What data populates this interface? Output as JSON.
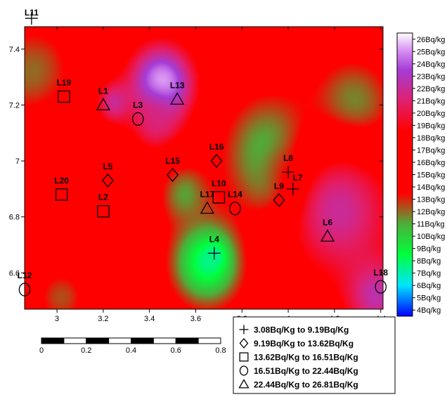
{
  "map": {
    "x_axis": {
      "min": 2.86,
      "max": 4.41,
      "ticks": [
        "3",
        "3.2",
        "3.4",
        "3.6",
        "3.8",
        "4",
        "4.2",
        "4.4"
      ]
    },
    "y_axis": {
      "min": 6.47,
      "max": 7.48,
      "ticks": [
        "6.6",
        "6.8",
        "7",
        "7.2",
        "7.4"
      ]
    },
    "hotspots": [
      {
        "x": 3.45,
        "y": 7.27,
        "value": 26.3,
        "radius": 0.11
      },
      {
        "x": 3.24,
        "y": 7.2,
        "value": 24.5,
        "radius": 0.06
      },
      {
        "x": 3.42,
        "y": 7.14,
        "value": 22.0,
        "radius": 0.08
      },
      {
        "x": 4.01,
        "y": 6.97,
        "value": 3.5,
        "radius": 0.03
      },
      {
        "x": 3.97,
        "y": 6.93,
        "value": 7.0,
        "radius": 0.09
      },
      {
        "x": 3.93,
        "y": 7.03,
        "value": 10.0,
        "radius": 0.15
      },
      {
        "x": 3.68,
        "y": 6.66,
        "value": 3.5,
        "radius": 0.03
      },
      {
        "x": 3.65,
        "y": 6.64,
        "value": 7.5,
        "radius": 0.11
      },
      {
        "x": 3.55,
        "y": 6.88,
        "value": 11.0,
        "radius": 0.08
      },
      {
        "x": 2.9,
        "y": 7.3,
        "value": 11.5,
        "radius": 0.13
      },
      {
        "x": 4.28,
        "y": 7.18,
        "value": 10.5,
        "radius": 0.13
      },
      {
        "x": 4.22,
        "y": 6.82,
        "value": 22.0,
        "radius": 0.18
      },
      {
        "x": 4.38,
        "y": 6.52,
        "value": 22.5,
        "radius": 0.1
      },
      {
        "x": 3.02,
        "y": 6.52,
        "value": 12.0,
        "radius": 0.08
      },
      {
        "x": 3.05,
        "y": 6.93,
        "value": 15.5,
        "radius": 0.2
      }
    ],
    "base_value": 15.5,
    "stations": [
      {
        "name": "L1",
        "x": 3.2,
        "y": 7.2,
        "class": "triangle"
      },
      {
        "name": "L2",
        "x": 3.2,
        "y": 6.82,
        "class": "square"
      },
      {
        "name": "L3",
        "x": 3.35,
        "y": 7.15,
        "class": "circle"
      },
      {
        "name": "L4",
        "x": 3.68,
        "y": 6.67,
        "class": "plus"
      },
      {
        "name": "L5",
        "x": 3.22,
        "y": 6.93,
        "class": "diamond"
      },
      {
        "name": "L6",
        "x": 4.17,
        "y": 6.73,
        "class": "triangle"
      },
      {
        "name": "L7",
        "x": 4.02,
        "y": 6.9,
        "class": "plus"
      },
      {
        "name": "L8",
        "x": 4.0,
        "y": 6.96,
        "class": "plus"
      },
      {
        "name": "L9",
        "x": 3.96,
        "y": 6.86,
        "class": "diamond"
      },
      {
        "name": "L10",
        "x": 3.7,
        "y": 6.87,
        "class": "square"
      },
      {
        "name": "L11",
        "x": 2.89,
        "y": 7.51,
        "class": "plus"
      },
      {
        "name": "L12",
        "x": 2.86,
        "y": 6.54,
        "class": "circle"
      },
      {
        "name": "L13",
        "x": 3.52,
        "y": 7.22,
        "class": "triangle"
      },
      {
        "name": "L14",
        "x": 3.77,
        "y": 6.83,
        "class": "circle"
      },
      {
        "name": "L15",
        "x": 3.5,
        "y": 6.95,
        "class": "diamond"
      },
      {
        "name": "L16",
        "x": 3.69,
        "y": 7.0,
        "class": "diamond"
      },
      {
        "name": "L17",
        "x": 3.65,
        "y": 6.83,
        "class": "triangle"
      },
      {
        "name": "L18",
        "x": 4.4,
        "y": 6.55,
        "class": "circle"
      },
      {
        "name": "L19",
        "x": 3.03,
        "y": 7.23,
        "class": "square"
      },
      {
        "name": "L20",
        "x": 3.02,
        "y": 6.88,
        "class": "square"
      }
    ]
  },
  "colorbar": {
    "min": 3.5,
    "max": 26.5,
    "stops": [
      {
        "value": 3.5,
        "color": "#0000ff"
      },
      {
        "value": 6.0,
        "color": "#00e5ff"
      },
      {
        "value": 8.5,
        "color": "#00ff3c"
      },
      {
        "value": 11.0,
        "color": "#4caf3a"
      },
      {
        "value": 13.5,
        "color": "#ff0000"
      },
      {
        "value": 18.5,
        "color": "#ff0000"
      },
      {
        "value": 21.0,
        "color": "#e0206e"
      },
      {
        "value": 23.5,
        "color": "#a53cd6"
      },
      {
        "value": 25.0,
        "color": "#d48bf0"
      },
      {
        "value": 26.5,
        "color": "#ffffff"
      }
    ],
    "labels": [
      "4Bq/kg",
      "5Bq/kg",
      "6Bq/kg",
      "7Bq/kg",
      "8Bq/kg",
      "9Bq/kg",
      "10Bq/kg",
      "11Bq/kg",
      "12Bq/kg",
      "13Bq/kg",
      "14Bq/kg",
      "15Bq/kg",
      "16Bq/kg",
      "17Bq/kg",
      "18Bq/kg",
      "19Bq/kg",
      "20Bq/kg",
      "21Bq/kg",
      "22Bq/kg",
      "23Bq/kg",
      "24Bq/kg",
      "25Bq/kg",
      "26Bq/kg"
    ]
  },
  "scalebar": {
    "labels": [
      "0",
      "0.2",
      "0.4",
      "0.6",
      "0.8"
    ]
  },
  "legend": {
    "items": [
      {
        "symbol": "plus",
        "label": "3.08Bq/Kg  to  9.19Bq/Kg"
      },
      {
        "symbol": "diamond",
        "label": "9.19Bq/Kg  to  13.62Bq/Kg"
      },
      {
        "symbol": "square",
        "label": "13.62Bq/Kg  to  16.51Bq/Kg"
      },
      {
        "symbol": "circle",
        "label": "16.51Bq/Kg  to  22.44Bq/Kg"
      },
      {
        "symbol": "triangle",
        "label": "22.44Bq/Kg  to  26.81Bq/Kg"
      }
    ]
  }
}
